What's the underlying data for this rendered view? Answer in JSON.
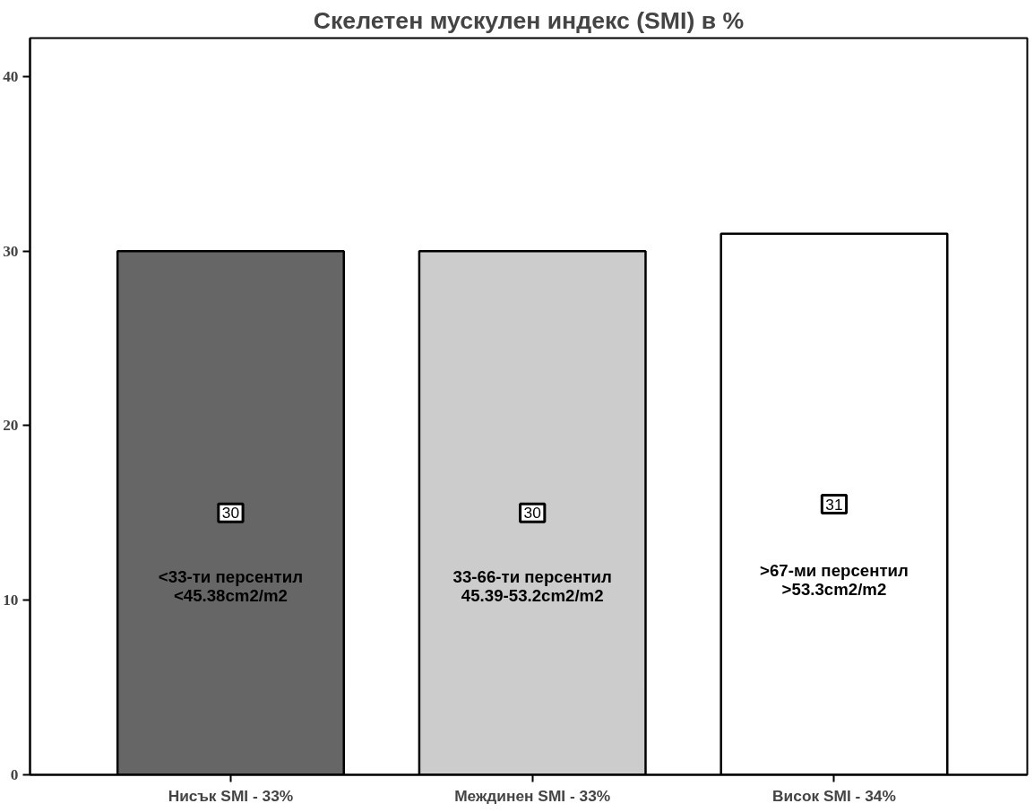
{
  "chart_data": {
    "type": "bar",
    "title": "Скелетен мускулен индекс (SMI) в %",
    "categories": [
      "Нисък SMI - 33%",
      "Междинен SMI - 33%",
      "Висок SMI - 34%"
    ],
    "values": [
      30,
      30,
      31
    ],
    "colors": [
      "#666666",
      "#cccccc",
      "#ffffff"
    ],
    "ylim": [
      0,
      42.2
    ],
    "yticks": [
      0,
      10,
      20,
      30,
      40
    ],
    "grid": false,
    "data_labels": true,
    "annotations": [
      "<33-ти персентил\n<45.38cm2/m2",
      "33-66-ти персентил\n45.39-53.2cm2/m2",
      ">67-ми персентил\n>53.3cm2/m2"
    ]
  }
}
